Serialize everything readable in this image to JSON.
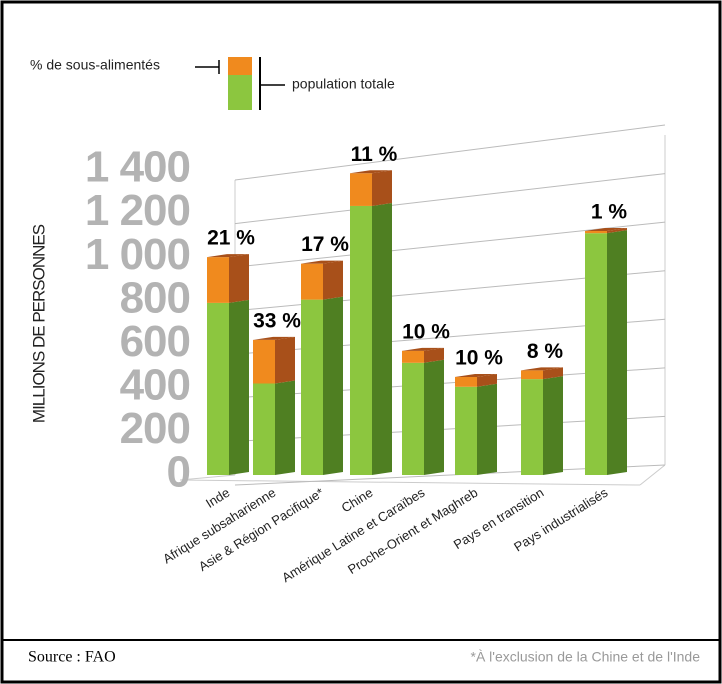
{
  "chart_data": {
    "type": "stacked-bar-3d",
    "y_label": "MILLIONS DE PERSONNES",
    "categories": [
      "Inde",
      "Afrique subsaharienne",
      "Asie & Région Pacifique*",
      "Chine",
      "Amérique Latine et Caraïbes",
      "Proche-Orient et Maghreb",
      "Pays en transition",
      "Pays industrialisés"
    ],
    "series": [
      {
        "name": "population totale",
        "color": "#8cc63f",
        "side_color": "#4f7f22",
        "values": [
          790,
          420,
          805,
          1235,
          515,
          405,
          440,
          1110
        ]
      },
      {
        "name": "% de sous-alimentés",
        "color": "#f08a1e",
        "side_color": "#a8501a",
        "values": [
          210,
          200,
          165,
          150,
          55,
          45,
          40,
          10
        ]
      }
    ],
    "percent_values": [
      21,
      33,
      17,
      11,
      10,
      10,
      8,
      1
    ],
    "percent_labels": [
      "21 %",
      "33 %",
      "17 %",
      "11 %",
      "10 %",
      "10 %",
      "8 %",
      "1 %"
    ],
    "ylim": [
      0,
      1400
    ],
    "yticks": [
      0,
      200,
      400,
      600,
      800,
      {
        "value": 1000,
        "label": "1 000"
      },
      {
        "value": 1200,
        "label": "1 200"
      },
      {
        "value": 1400,
        "label": "1 400"
      }
    ],
    "grid": true,
    "source": "Source : FAO",
    "note": "*À l'exclusion de la Chine et de l'Inde"
  }
}
